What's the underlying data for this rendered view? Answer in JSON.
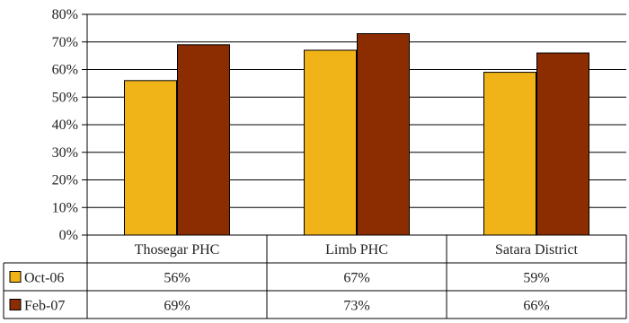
{
  "chart_data": {
    "type": "bar",
    "title": "",
    "xlabel": "",
    "ylabel": "",
    "categories": [
      "Thosegar PHC",
      "Limb PHC",
      "Satara District"
    ],
    "series": [
      {
        "name": "Oct-06",
        "values": [
          56,
          67,
          59
        ],
        "labels": [
          "56%",
          "67%",
          "59%"
        ],
        "color": "#f0b418"
      },
      {
        "name": "Feb-07",
        "values": [
          69,
          73,
          66
        ],
        "labels": [
          "69%",
          "73%",
          "66%"
        ],
        "color": "#8b2d00"
      }
    ],
    "ylim": [
      0,
      80
    ],
    "yticks": [
      0,
      10,
      20,
      30,
      40,
      50,
      60,
      70,
      80
    ],
    "ytick_labels": [
      "0%",
      "10%",
      "20%",
      "30%",
      "40%",
      "50%",
      "60%",
      "70%",
      "80%"
    ],
    "grid": true,
    "legend": "data-table-left",
    "data_table": true
  }
}
